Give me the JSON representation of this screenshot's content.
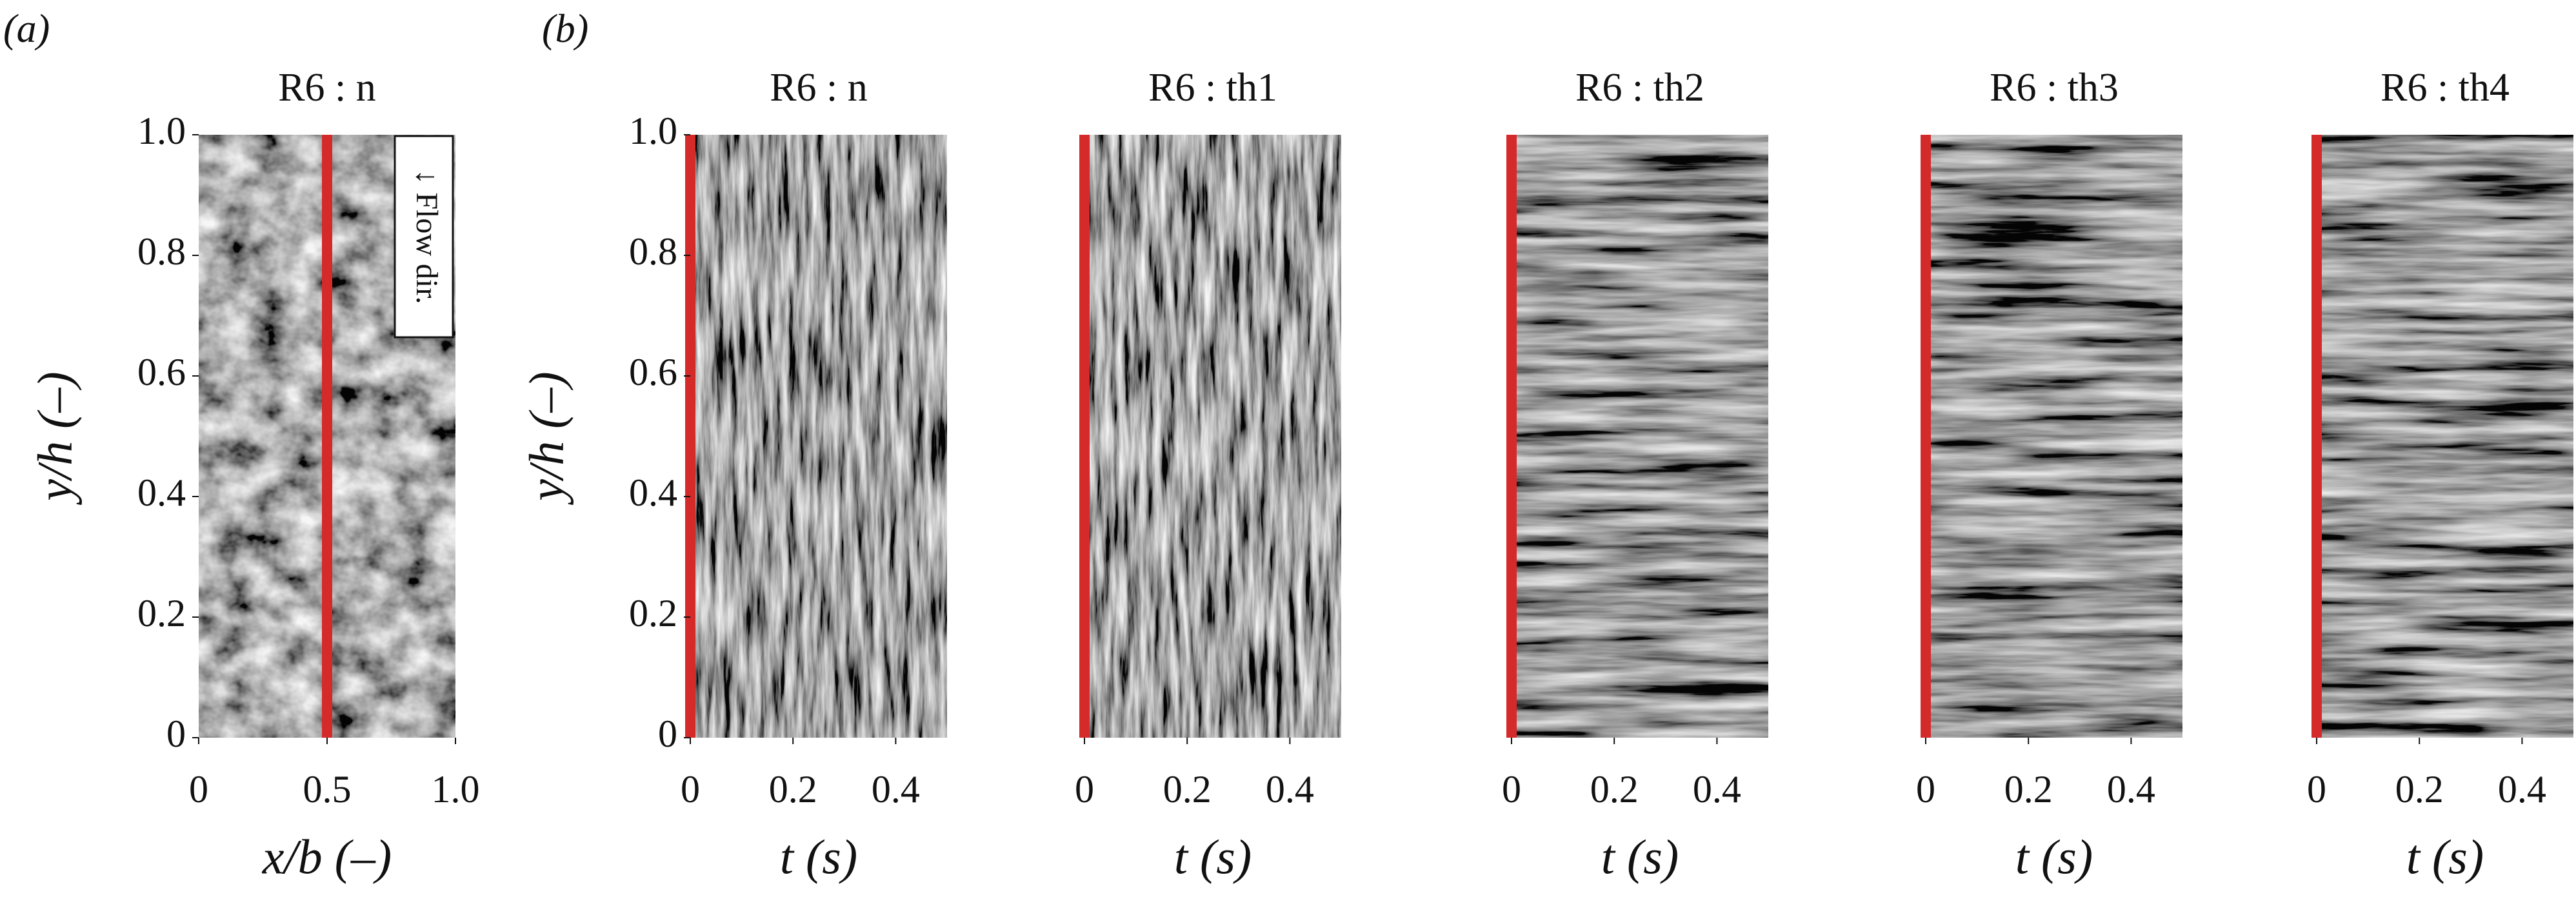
{
  "panel_labels": [
    "(a)",
    "(b)"
  ],
  "chart_data": [
    {
      "type": "image",
      "title": "R6 : n",
      "xlabel": "x/b (–)",
      "ylabel": "y/h (–)",
      "annotation": "↓ Flow dir.",
      "xlim": [
        0,
        1
      ],
      "xticks": [
        0,
        0.5,
        {
          "value": 1,
          "label": "1.0"
        }
      ],
      "ylim": [
        0,
        1
      ],
      "yticks": [
        0,
        0.2,
        0.4,
        0.6,
        0.8,
        {
          "value": 1,
          "label": "1.0"
        }
      ],
      "line_x": 0.5,
      "line_color": "#d42a2a"
    },
    {
      "type": "image",
      "title": "R6 : n",
      "xlabel": "t (s)",
      "ylabel": "y/h (–)",
      "xlim": [
        0,
        0.5
      ],
      "xticks": [
        0,
        0.2,
        0.4
      ],
      "ylim": [
        0,
        1
      ],
      "yticks": [
        0,
        0.2,
        0.4,
        0.6,
        0.8,
        {
          "value": 1,
          "label": "1.0"
        }
      ],
      "line_x": 0,
      "line_color": "#d42a2a"
    },
    {
      "type": "image",
      "title": "R6 : th1",
      "xlabel": "t (s)",
      "xlim": [
        0,
        0.5
      ],
      "xticks": [
        0,
        0.2,
        0.4
      ],
      "ylim": [
        0,
        1
      ],
      "line_x": 0,
      "line_color": "#d42a2a"
    },
    {
      "type": "image",
      "title": "R6 : th2",
      "xlabel": "t (s)",
      "xlim": [
        0,
        0.5
      ],
      "xticks": [
        0,
        0.2,
        0.4
      ],
      "ylim": [
        0,
        1
      ],
      "line_x": 0,
      "line_color": "#d42a2a"
    },
    {
      "type": "image",
      "title": "R6 : th3",
      "xlabel": "t (s)",
      "xlim": [
        0,
        0.5
      ],
      "xticks": [
        0,
        0.2,
        0.4
      ],
      "ylim": [
        0,
        1
      ],
      "line_x": 0,
      "line_color": "#d42a2a"
    },
    {
      "type": "image",
      "title": "R6 : th4",
      "xlabel": "t (s)",
      "xlim": [
        0,
        0.5
      ],
      "xticks": [
        0,
        0.2,
        0.4
      ],
      "ylim": [
        0,
        1
      ],
      "line_x": 0,
      "line_color": "#d42a2a"
    }
  ]
}
